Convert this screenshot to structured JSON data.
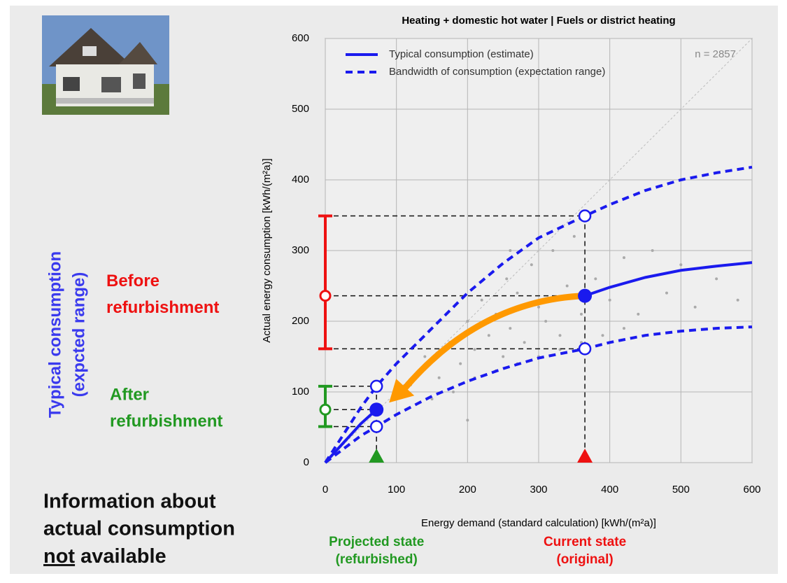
{
  "chart_data": {
    "type": "line",
    "title": "Heating + domestic hot water | Fuels or district heating",
    "x_label": "Energy demand (standard calculation) [kWh/(m²a)]",
    "y_label": "Actual energy consumption [kWh/(m²a)]",
    "xlim": [
      0,
      600
    ],
    "ylim": [
      0,
      600
    ],
    "xticks": [
      0,
      100,
      200,
      300,
      400,
      500,
      600
    ],
    "yticks": [
      0,
      100,
      200,
      300,
      400,
      500,
      600
    ],
    "grid": true,
    "sample_size_label": "n = 2857",
    "x": [
      0,
      50,
      72,
      100,
      150,
      200,
      250,
      300,
      365,
      400,
      450,
      500,
      550,
      600
    ],
    "series": [
      {
        "name": "Typical consumption (estimate)",
        "color": "#1a1aee",
        "style": "solid",
        "values": [
          0,
          55,
          75,
          null,
          null,
          null,
          null,
          null,
          236,
          248,
          262,
          272,
          278,
          283
        ]
      },
      {
        "name": "Bandwidth of consumption (expectation range)",
        "color": "#1a1aee",
        "style": "dashed",
        "values": [
          0,
          78,
          108,
          140,
          190,
          240,
          282,
          318,
          349,
          365,
          385,
          400,
          410,
          418
        ]
      },
      {
        "color": "#1a1aee",
        "style": "dashed",
        "values": [
          0,
          38,
          51,
          68,
          94,
          115,
          133,
          148,
          161,
          170,
          180,
          186,
          190,
          192
        ]
      }
    ],
    "scatter": {
      "color": "#aaaaaa",
      "x": [
        120,
        140,
        160,
        175,
        190,
        200,
        210,
        220,
        230,
        240,
        250,
        255,
        260,
        270,
        280,
        290,
        300,
        310,
        320,
        330,
        340,
        350,
        360,
        380,
        400,
        420,
        440,
        460,
        480,
        500,
        520,
        550,
        580,
        150,
        180,
        210,
        240,
        270,
        300,
        330,
        360,
        390,
        420,
        200,
        260
      ],
      "y": [
        110,
        150,
        120,
        170,
        140,
        200,
        160,
        230,
        180,
        210,
        150,
        260,
        190,
        240,
        170,
        280,
        220,
        200,
        300,
        180,
        250,
        320,
        210,
        260,
        230,
        290,
        210,
        300,
        240,
        280,
        220,
        260,
        230,
        90,
        100,
        120,
        130,
        140,
        150,
        160,
        170,
        180,
        190,
        60,
        300
      ]
    },
    "range_title_lines": [
      "Typical consumption",
      "(expcted range)"
    ],
    "states": [
      {
        "label_lines": [
          "Current state",
          "(original)"
        ],
        "range_label_lines": [
          "Before",
          "refurbishment"
        ],
        "color": "#ee1111",
        "x": 365,
        "typical": 236,
        "low": 161,
        "high": 349
      },
      {
        "label_lines": [
          "Projected state",
          "(refurbished)"
        ],
        "range_label_lines": [
          "After",
          "refurbishment"
        ],
        "color": "#229922",
        "x": 72,
        "typical": 75,
        "low": 51,
        "high": 108
      }
    ],
    "note_lines": [
      "Information about",
      "actual consumption"
    ],
    "note_last": {
      "underlined": "not",
      "rest": " available"
    }
  }
}
